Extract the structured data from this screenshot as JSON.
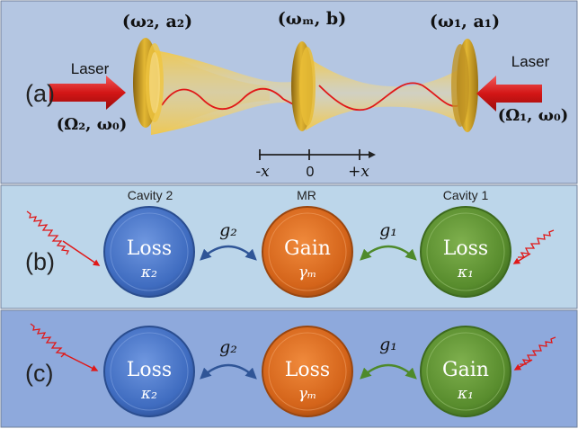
{
  "panel_a": {
    "label": "(a)",
    "mirror_left_label": "(ω₂,  a₂)",
    "mirror_mid_label": "(ωₘ, b)",
    "mirror_right_label": "(ω₁,  a₁)",
    "laser_left": "Laser",
    "laser_left_params": "(Ω₂, ω₀)",
    "laser_right": "Laser",
    "laser_right_params": "(Ω₁, ω₀)",
    "axis_neg": "-x",
    "axis_zero": "0",
    "axis_pos": "+x"
  },
  "panel_b": {
    "label": "(b)",
    "header_cavity2": "Cavity 2",
    "header_mr": "MR",
    "header_cavity1": "Cavity 1",
    "coupling_left": "g₂",
    "coupling_right": "g₁",
    "circle_left": {
      "title": "Loss",
      "param": "κ₂"
    },
    "circle_mid": {
      "title": "Gain",
      "param": "γₘ"
    },
    "circle_right": {
      "title": "Loss",
      "param": "κ₁"
    }
  },
  "panel_c": {
    "label": "(c)",
    "coupling_left": "g₂",
    "coupling_right": "g₁",
    "circle_left": {
      "title": "Loss",
      "param": "κ₂"
    },
    "circle_mid": {
      "title": "Loss",
      "param": "γₘ"
    },
    "circle_right": {
      "title": "Gain",
      "param": "κ₁"
    }
  },
  "colors": {
    "panel_a_bg": "#b4c6e2",
    "panel_b_bg": "#bcd6ea",
    "panel_c_bg": "#8ea9dc",
    "beam": "#f2c430",
    "mirror_gold": "#c99a1c",
    "laser_red": "#d81b1b",
    "wave_red": "#e01818",
    "circle_blue": "#4472c4",
    "circle_orange": "#d7661c",
    "circle_green": "#5a8f2e",
    "arrow_blue": "#2f5597",
    "arrow_green": "#4e8a2a"
  }
}
